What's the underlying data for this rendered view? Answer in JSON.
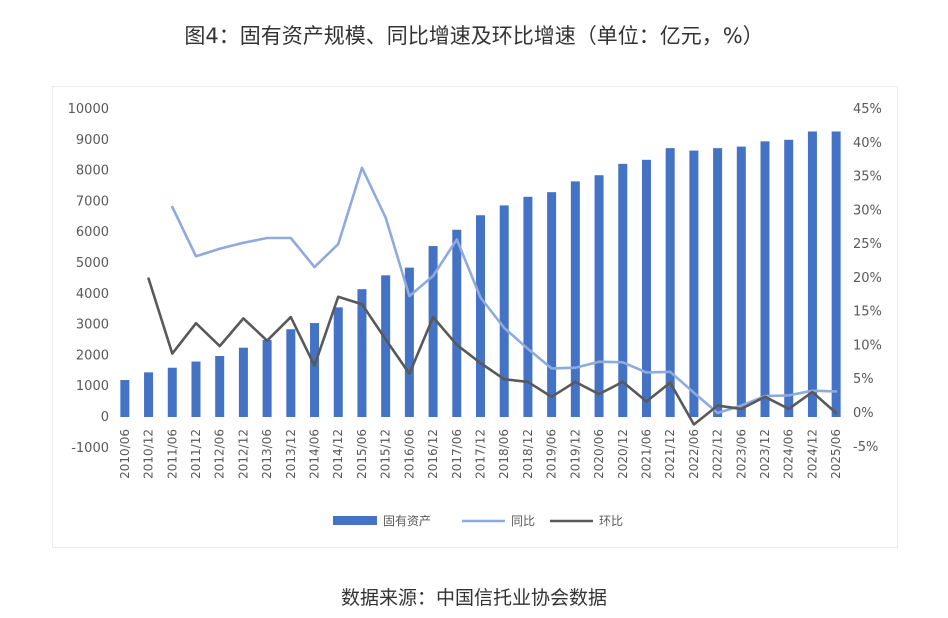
{
  "title": "图4：固有资产规模、同比增速及环比增速（单位：亿元，%）",
  "source": "数据来源：中国信托业协会数据",
  "colors": {
    "bar": "#4472C4",
    "yoy": "#8FAADC",
    "qoq": "#595959"
  },
  "chart_data": {
    "type": "bar",
    "categories": [
      "2010/06",
      "2010/12",
      "2011/06",
      "2011/12",
      "2012/06",
      "2012/12",
      "2013/06",
      "2013/12",
      "2014/06",
      "2014/12",
      "2015/06",
      "2015/12",
      "2016/06",
      "2016/12",
      "2017/06",
      "2017/12",
      "2018/06",
      "2018/12",
      "2019/06",
      "2019/12",
      "2020/06",
      "2020/12",
      "2021/06",
      "2021/12",
      "2022/06",
      "2022/12",
      "2023/06",
      "2023/12",
      "2024/06",
      "2024/12",
      "2025/06"
    ],
    "left_axis": {
      "min": -1000,
      "max": 10000,
      "ticks": [
        -1000,
        0,
        1000,
        2000,
        3000,
        4000,
        5000,
        6000,
        7000,
        8000,
        9000,
        10000
      ]
    },
    "right_axis": {
      "min": -5,
      "max": 45,
      "ticks": [
        "-5%",
        "0%",
        "5%",
        "10%",
        "15%",
        "20%",
        "25%",
        "30%",
        "35%",
        "40%",
        "45%"
      ]
    },
    "series": [
      {
        "name": "固有资产",
        "type": "bar",
        "axis": "left",
        "values": [
          1200,
          1450,
          1600,
          1800,
          1980,
          2250,
          2500,
          2850,
          3050,
          3560,
          4150,
          4600,
          4850,
          5550,
          6080,
          6550,
          6870,
          7150,
          7300,
          7650,
          7850,
          8220,
          8350,
          8730,
          8650,
          8730,
          8780,
          8950,
          9000,
          9270,
          9270
        ]
      },
      {
        "name": "同比",
        "type": "line",
        "axis": "right",
        "values": [
          null,
          null,
          30.5,
          23.2,
          24.3,
          25.2,
          25.9,
          25.9,
          21.6,
          25.0,
          36.3,
          28.9,
          17.3,
          20.3,
          25.7,
          17.1,
          12.6,
          9.5,
          6.6,
          6.7,
          7.6,
          7.5,
          6.0,
          6.1,
          3.0,
          0.0,
          1.1,
          2.5,
          2.6,
          3.3,
          3.2
        ]
      },
      {
        "name": "环比",
        "type": "line",
        "axis": "right",
        "values": [
          null,
          19.9,
          8.8,
          13.3,
          9.9,
          14.0,
          10.7,
          14.2,
          7.0,
          17.2,
          16.1,
          10.9,
          5.8,
          14.2,
          10.1,
          7.4,
          5.0,
          4.6,
          2.4,
          4.6,
          2.8,
          4.6,
          1.7,
          4.5,
          -1.7,
          1.1,
          0.6,
          2.4,
          0.6,
          3.1,
          0.0
        ]
      }
    ],
    "legend": {
      "position": "bottom",
      "items": [
        "固有资产",
        "同比",
        "环比"
      ]
    }
  }
}
